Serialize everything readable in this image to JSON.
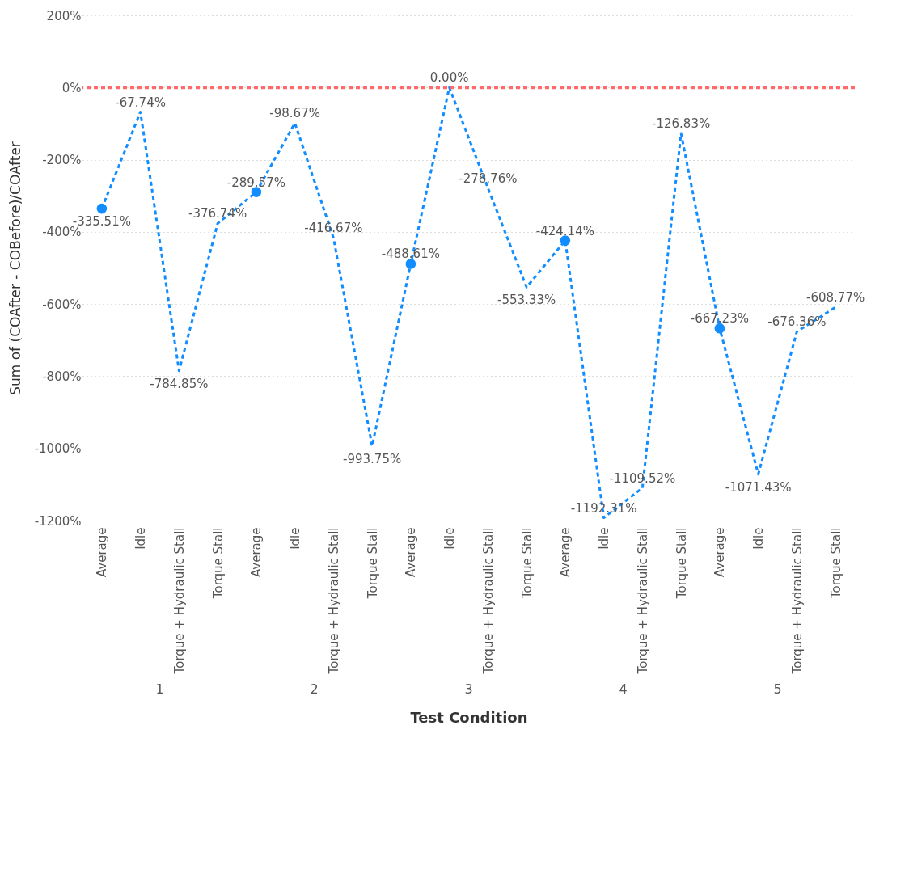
{
  "chart_data": {
    "type": "line",
    "xlabel": "Test Condition",
    "ylabel": "Sum of (COAfter - COBefore)/COAfter",
    "categories": [
      "Average",
      "Idle",
      "Torque + Hydraulic Stall",
      "Torque Stall",
      "Average",
      "Idle",
      "Torque + Hydraulic Stall",
      "Torque Stall",
      "Average",
      "Idle",
      "Torque + Hydraulic Stall",
      "Torque Stall",
      "Average",
      "Idle",
      "Torque + Hydraulic Stall",
      "Torque Stall",
      "Average",
      "Idle",
      "Torque + Hydraulic Stall",
      "Torque Stall"
    ],
    "series": [
      {
        "type": "line",
        "color": "#118dff",
        "line_style": "dashed",
        "marker": "none",
        "values": [
          -335.51,
          -67.74,
          -784.85,
          -376.74,
          -289.57,
          -98.67,
          -416.67,
          -993.75,
          -488.61,
          0.0,
          -278.76,
          -553.33,
          -424.14,
          -1192.31,
          -1109.52,
          -126.83,
          -667.23,
          -1071.43,
          -676.36,
          -608.77
        ],
        "value_labels": [
          "-335.51%",
          "-67.74%",
          "-784.85%",
          "-376.74%",
          "-289.57%",
          "-98.67%",
          "-416.67%",
          "-993.75%",
          "-488.61%",
          "0.00%",
          "-278.76%",
          "-553.33%",
          "-424.14%",
          "-1192.31%",
          "-1109.52%",
          "-126.83%",
          "-667.23%",
          "-1071.43%",
          "-676.36%",
          "-608.77%"
        ]
      },
      {
        "type": "scatter",
        "color": "#118dff",
        "marker": "circle",
        "values": [
          -335.51,
          null,
          null,
          null,
          -289.57,
          null,
          null,
          null,
          -488.61,
          null,
          null,
          null,
          -424.14,
          null,
          null,
          null,
          -667.23,
          null,
          null,
          null
        ]
      }
    ],
    "ylim": [
      -1200,
      200
    ],
    "yticks": [
      {
        "value": -1200,
        "label": "-1200%"
      },
      {
        "value": -1000,
        "label": "-1000%"
      },
      {
        "value": -800,
        "label": "-800%"
      },
      {
        "value": -600,
        "label": "-600%"
      },
      {
        "value": -400,
        "label": "-400%"
      },
      {
        "value": -200,
        "label": "-200%"
      },
      {
        "value": 0,
        "label": "0%"
      },
      {
        "value": 200,
        "label": "200%"
      }
    ],
    "grid": "y",
    "ref_lines": [
      {
        "axis": "y",
        "value": 0,
        "color": "#ff6b6b",
        "line_style": "dashed"
      }
    ],
    "annotations": [
      "1",
      "2",
      "3",
      "4",
      "5"
    ]
  }
}
